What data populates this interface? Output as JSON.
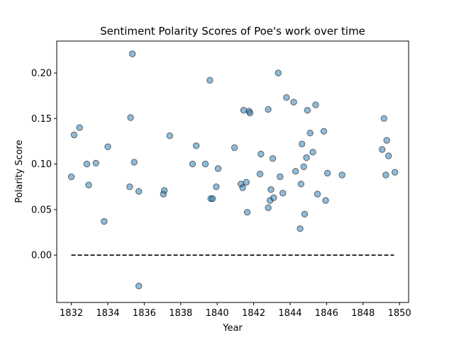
{
  "chart_data": {
    "type": "scatter",
    "title": "Sentiment Polarity Scores of Poe's work over time",
    "xlabel": "Year",
    "ylabel": "Polarity Score",
    "xlim": [
      1831.2,
      1850.5
    ],
    "ylim": [
      -0.052,
      0.235
    ],
    "xticks": [
      1832,
      1834,
      1836,
      1838,
      1840,
      1842,
      1844,
      1846,
      1848,
      1850
    ],
    "yticks": [
      0.0,
      0.05,
      0.1,
      0.15,
      0.2
    ],
    "ytick_labels": [
      "0.00",
      "0.05",
      "0.10",
      "0.15",
      "0.20"
    ],
    "grid": false,
    "point_color": "#1f77b4",
    "point_edge_color": "#000000",
    "baseline": {
      "y": 0.0,
      "x_start": 1832.0,
      "x_end": 1849.7,
      "style": "dashed",
      "color": "#000000"
    },
    "points": [
      [
        1832.0,
        0.086
      ],
      [
        1832.15,
        0.132
      ],
      [
        1832.45,
        0.14
      ],
      [
        1832.85,
        0.1
      ],
      [
        1832.95,
        0.077
      ],
      [
        1833.35,
        0.101
      ],
      [
        1833.8,
        0.037
      ],
      [
        1834.0,
        0.119
      ],
      [
        1835.2,
        0.075
      ],
      [
        1835.25,
        0.151
      ],
      [
        1835.35,
        0.221
      ],
      [
        1835.45,
        0.102
      ],
      [
        1835.7,
        0.07
      ],
      [
        1835.7,
        -0.034
      ],
      [
        1837.05,
        0.067
      ],
      [
        1837.1,
        0.071
      ],
      [
        1837.4,
        0.131
      ],
      [
        1838.65,
        0.1
      ],
      [
        1838.85,
        0.12
      ],
      [
        1839.35,
        0.1
      ],
      [
        1839.6,
        0.192
      ],
      [
        1839.65,
        0.062
      ],
      [
        1839.75,
        0.062
      ],
      [
        1839.95,
        0.075
      ],
      [
        1840.05,
        0.095
      ],
      [
        1840.95,
        0.118
      ],
      [
        1841.3,
        0.078
      ],
      [
        1841.4,
        0.074
      ],
      [
        1841.45,
        0.159
      ],
      [
        1841.6,
        0.08
      ],
      [
        1841.65,
        0.047
      ],
      [
        1841.75,
        0.158
      ],
      [
        1841.8,
        0.156
      ],
      [
        1842.35,
        0.089
      ],
      [
        1842.4,
        0.111
      ],
      [
        1842.8,
        0.16
      ],
      [
        1842.8,
        0.052
      ],
      [
        1842.9,
        0.06
      ],
      [
        1842.95,
        0.072
      ],
      [
        1843.05,
        0.106
      ],
      [
        1843.1,
        0.063
      ],
      [
        1843.35,
        0.2
      ],
      [
        1843.45,
        0.086
      ],
      [
        1843.6,
        0.068
      ],
      [
        1843.8,
        0.173
      ],
      [
        1844.2,
        0.168
      ],
      [
        1844.3,
        0.092
      ],
      [
        1844.55,
        0.029
      ],
      [
        1844.6,
        0.078
      ],
      [
        1844.65,
        0.122
      ],
      [
        1844.75,
        0.097
      ],
      [
        1844.8,
        0.045
      ],
      [
        1844.9,
        0.107
      ],
      [
        1844.95,
        0.159
      ],
      [
        1845.1,
        0.134
      ],
      [
        1845.25,
        0.113
      ],
      [
        1845.4,
        0.165
      ],
      [
        1845.5,
        0.067
      ],
      [
        1845.85,
        0.136
      ],
      [
        1845.95,
        0.06
      ],
      [
        1846.05,
        0.09
      ],
      [
        1846.85,
        0.088
      ],
      [
        1849.05,
        0.116
      ],
      [
        1849.15,
        0.15
      ],
      [
        1849.25,
        0.088
      ],
      [
        1849.3,
        0.126
      ],
      [
        1849.4,
        0.109
      ],
      [
        1849.75,
        0.091
      ]
    ]
  }
}
